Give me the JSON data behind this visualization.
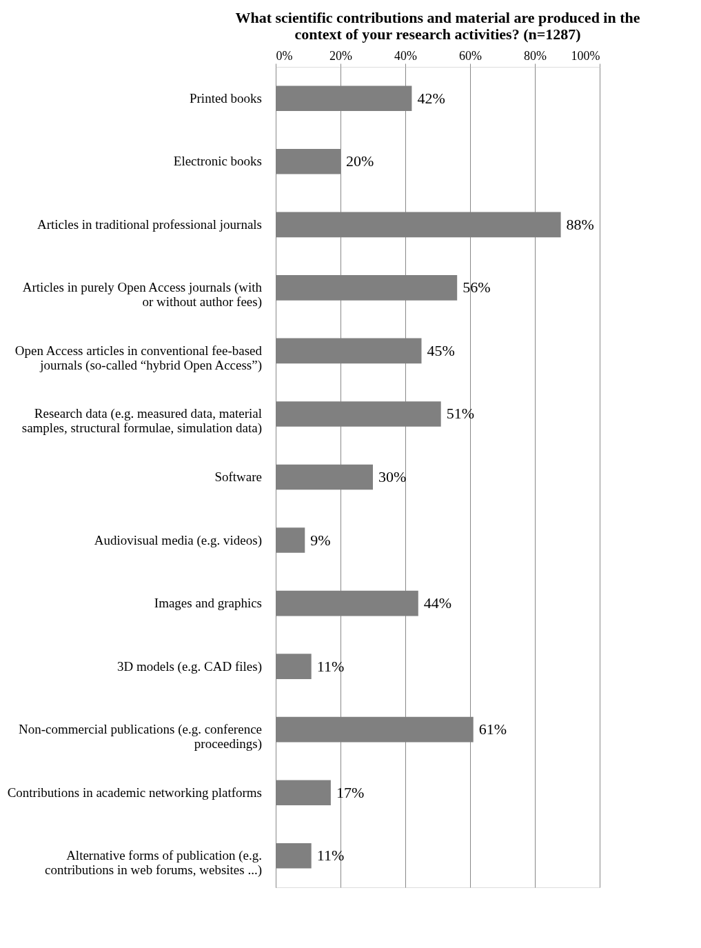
{
  "chart_data": {
    "type": "bar",
    "orientation": "horizontal",
    "title": "What scientific contributions and material are produced in the context of your research activities? (n=1287)",
    "categories": [
      "Printed books",
      "Electronic books",
      "Articles in traditional professional journals",
      "Articles in purely Open Access journals (with or without author fees)",
      "Open Access articles in conventional fee-based journals (so-called “hybrid Open Access”)",
      "Research data (e.g. measured data, material samples, structural formulae, simulation data)",
      "Software",
      "Audiovisual media (e.g. videos)",
      "Images and graphics",
      "3D models (e.g. CAD files)",
      "Non-commercial publications (e.g. conference proceedings)",
      "Contributions in academic networking platforms",
      "Alternative forms of publication (e.g. contributions in web forums, websites ...)"
    ],
    "values": [
      42,
      20,
      88,
      56,
      45,
      51,
      30,
      9,
      44,
      11,
      61,
      17,
      11
    ],
    "value_labels": [
      "42%",
      "20%",
      "88%",
      "56%",
      "45%",
      "51%",
      "30%",
      "9%",
      "44%",
      "11%",
      "61%",
      "17%",
      "11%"
    ],
    "color": "#808080",
    "xlim": [
      0,
      100
    ],
    "xticks": [
      {
        "value": 0,
        "label": "0%"
      },
      {
        "value": 20,
        "label": "20%"
      },
      {
        "value": 40,
        "label": "40%"
      },
      {
        "value": 60,
        "label": "60%"
      },
      {
        "value": 80,
        "label": "80%"
      },
      {
        "value": 100,
        "label": "100%"
      }
    ],
    "grid": "x"
  }
}
